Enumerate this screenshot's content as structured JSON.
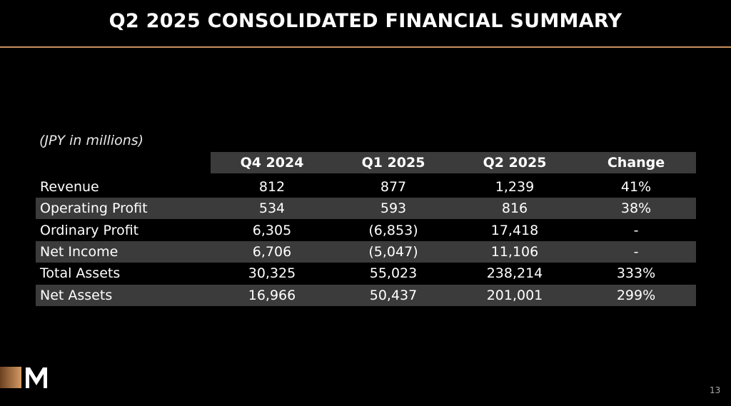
{
  "header": {
    "title": "Q2 2025 CONSOLIDATED FINANCIAL SUMMARY"
  },
  "table": {
    "note": "(JPY in millions)",
    "columns": [
      "Q4 2024",
      "Q1 2025",
      "Q2 2025",
      "Change"
    ],
    "rows": [
      [
        "Revenue",
        "812",
        "877",
        "1,239",
        "41%"
      ],
      [
        "Operating Profit",
        "534",
        "593",
        "816",
        "38%"
      ],
      [
        "Ordinary Profit",
        "6,305",
        "(6,853)",
        "17,418",
        "-"
      ],
      [
        "Net Income",
        "6,706",
        "(5,047)",
        "11,106",
        "-"
      ],
      [
        "Total Assets",
        "30,325",
        "55,023",
        "238,214",
        "333%"
      ],
      [
        "Net Assets",
        "16,966",
        "50,437",
        "201,001",
        "299%"
      ]
    ]
  },
  "footer": {
    "page": "13"
  }
}
